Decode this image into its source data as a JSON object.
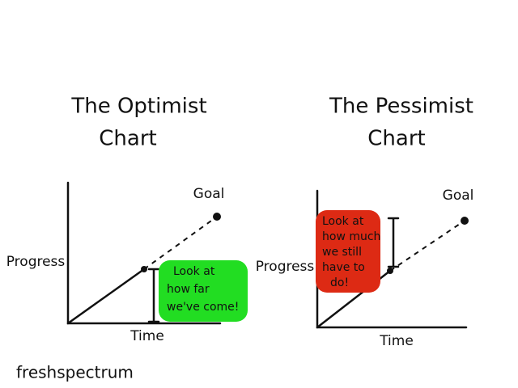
{
  "optimist": {
    "title": [
      "The Optimist",
      "Chart"
    ],
    "goal": "Goal",
    "y_label": "Progress",
    "x_label": "Time",
    "callout": [
      "Look at",
      "how far",
      "we've come!"
    ]
  },
  "pessimist": {
    "title": [
      "The Pessimist",
      "Chart"
    ],
    "goal": "Goal",
    "y_label": "Progress",
    "x_label": "Time",
    "callout": [
      "Look at",
      "how much",
      "we still",
      "have to",
      "do!"
    ]
  },
  "footer": "freshspectrum"
}
